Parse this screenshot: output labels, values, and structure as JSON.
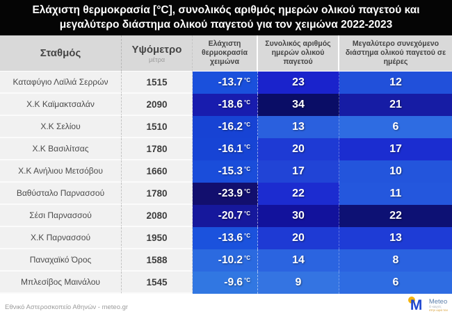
{
  "title": {
    "line1": "Ελάχιστη θερμοκρασία [°C], συνολικός αριθμός ημερών ολικού παγετού και",
    "line2": "μεγαλύτερο διάστημα ολικού παγετού για τον χειμώνα 2022-2023"
  },
  "columns": {
    "station": "Σταθμός",
    "altitude": "Υψόμετρο",
    "altitude_unit": "μέτρα",
    "min_temp": "Ελάχιστη θερμοκρασία χειμώνα",
    "frost_days": "Συνολικός αριθμός ημερών ολικού παγετού",
    "frost_interval": "Μεγαλύτερο συνεχόμενο διάστημα ολικού παγετού σε ημέρες"
  },
  "unit_celsius": "°C",
  "rows": [
    {
      "station": "Καταφύγιο Λαϊλιά Σερρών",
      "altitude": "1515",
      "temp": "-13.7",
      "temp_color": "#1a50dc",
      "days": "23",
      "days_color": "#1a23cc",
      "interval": "12",
      "interval_color": "#2150da"
    },
    {
      "station": "Χ.Κ Καϊμακτσαλάν",
      "altitude": "2090",
      "temp": "-18.6",
      "temp_color": "#181cae",
      "days": "34",
      "days_color": "#0a0d66",
      "interval": "21",
      "interval_color": "#161ca4"
    },
    {
      "station": "Χ.Κ Σελίου",
      "altitude": "1510",
      "temp": "-16.2",
      "temp_color": "#1743d4",
      "days": "13",
      "days_color": "#2a60de",
      "interval": "6",
      "interval_color": "#2e6ce2"
    },
    {
      "station": "Χ.Κ Βασιλίτσας",
      "altitude": "1780",
      "temp": "-16.1",
      "temp_color": "#1744d5",
      "days": "20",
      "days_color": "#1e3ad4",
      "interval": "17",
      "interval_color": "#1b2dd0"
    },
    {
      "station": "Χ.Κ Ανήλιου Μετσόβου",
      "altitude": "1660",
      "temp": "-15.3",
      "temp_color": "#1a4dda",
      "days": "17",
      "days_color": "#2144d6",
      "interval": "10",
      "interval_color": "#2355dc"
    },
    {
      "station": "Βαθύσταλο Παρνασσού",
      "altitude": "1780",
      "temp": "-23.9",
      "temp_color": "#120f6e",
      "days": "22",
      "days_color": "#1c2cd0",
      "interval": "11",
      "interval_color": "#2457dd"
    },
    {
      "station": "Σέσι Παρνασσού",
      "altitude": "2080",
      "temp": "-20.7",
      "temp_color": "#16189c",
      "days": "30",
      "days_color": "#12129c",
      "interval": "22",
      "interval_color": "#0d1174"
    },
    {
      "station": "Χ.Κ Παρνασσού",
      "altitude": "1950",
      "temp": "-13.6",
      "temp_color": "#1b52dd",
      "days": "20",
      "days_color": "#1e3ad4",
      "interval": "13",
      "interval_color": "#1e3cd6"
    },
    {
      "station": "Παναχαϊκό Όρος",
      "altitude": "1588",
      "temp": "-10.2",
      "temp_color": "#2b6ae0",
      "days": "14",
      "days_color": "#2b64e0",
      "interval": "8",
      "interval_color": "#2a62e0"
    },
    {
      "station": "Μπλεσίβος Μαινάλου",
      "altitude": "1545",
      "temp": "-9.6",
      "temp_color": "#3177e2",
      "days": "9",
      "days_color": "#3474e2",
      "interval": "6",
      "interval_color": "#2e6ce2"
    }
  ],
  "footer": {
    "source": "Εθνικό Αστεροσκοπείο Αθηνών - meteo.gr",
    "logo_text": "Meteo",
    "logo_tagline_1": "Ο καιρός",
    "logo_tagline_2": "στην ώρα του"
  },
  "colors": {
    "banner_bg": "#050505",
    "header_bg": "#d9d9d9",
    "light_cell_bg": "#f1f1f1",
    "logo_blue": "#2148d0",
    "logo_yellow": "#f6b40d"
  },
  "chart_data": {
    "type": "table",
    "title": "Ελάχιστη θερμοκρασία [°C], συνολικός αριθμός ημερών ολικού παγετού και μεγαλύτερο διάστημα ολικού παγετού για τον χειμώνα 2022-2023",
    "columns": [
      "Σταθμός",
      "Υψόμετρο (μέτρα)",
      "Ελάχιστη θερμοκρασία χειμώνα (°C)",
      "Συνολικός αριθμός ημερών ολικού παγετού",
      "Μεγαλύτερο συνεχόμενο διάστημα ολικού παγετού σε ημέρες"
    ],
    "rows": [
      [
        "Καταφύγιο Λαϊλιά Σερρών",
        1515,
        -13.7,
        23,
        12
      ],
      [
        "Χ.Κ Καϊμακτσαλάν",
        2090,
        -18.6,
        34,
        21
      ],
      [
        "Χ.Κ Σελίου",
        1510,
        -16.2,
        13,
        6
      ],
      [
        "Χ.Κ Βασιλίτσας",
        1780,
        -16.1,
        20,
        17
      ],
      [
        "Χ.Κ Ανήλιου Μετσόβου",
        1660,
        -15.3,
        17,
        10
      ],
      [
        "Βαθύσταλο Παρνασσού",
        1780,
        -23.9,
        22,
        11
      ],
      [
        "Σέσι Παρνασσού",
        2080,
        -20.7,
        30,
        22
      ],
      [
        "Χ.Κ Παρνασσού",
        1950,
        -13.6,
        20,
        13
      ],
      [
        "Παναχαϊκό Όρος",
        1588,
        -10.2,
        14,
        8
      ],
      [
        "Μπλεσίβος Μαινάλου",
        1545,
        -9.6,
        9,
        6
      ]
    ],
    "notes": "Cell shading is a per-column blue heatmap: darker = colder temperature / more frost days"
  }
}
